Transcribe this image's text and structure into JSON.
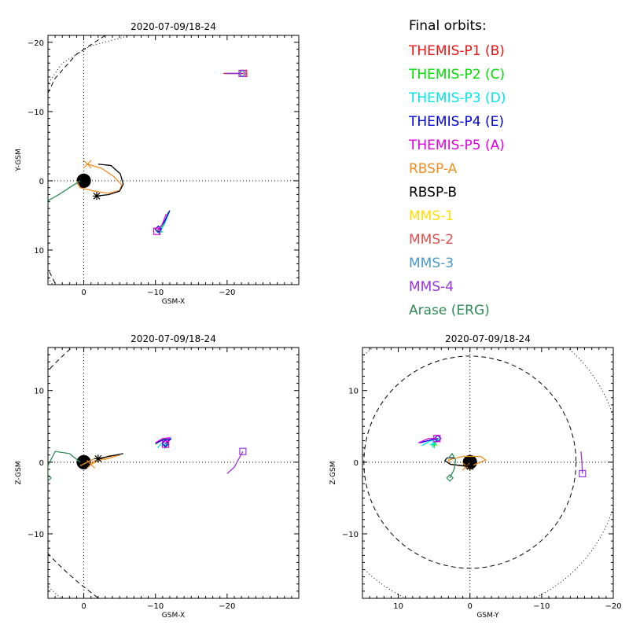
{
  "chart_data": [
    {
      "type": "scatter",
      "title": "2020-07-09/18-24",
      "xlabel": "GSM-X",
      "ylabel": "Y-GSM",
      "xlim": [
        5,
        -30
      ],
      "ylim": [
        15,
        -21
      ],
      "xticks": [
        0,
        -10,
        -20
      ],
      "yticks": [
        -20,
        -10,
        0,
        10
      ],
      "yticklabels": [
        "−20",
        "−10",
        "0",
        "10"
      ],
      "xticklabels": [
        "0",
        "−10",
        "−20"
      ],
      "earth": {
        "x": 0,
        "y": 0,
        "r": 1
      },
      "magnetopause": [
        [
          -3,
          -21
        ],
        [
          1,
          -18.3
        ],
        [
          4,
          -14.8
        ],
        [
          6,
          -10.6
        ],
        [
          7,
          -6
        ],
        [
          7.5,
          0
        ],
        [
          7,
          6
        ],
        [
          6,
          10.6
        ],
        [
          4,
          14.8
        ],
        [
          2.5,
          16.5
        ]
      ],
      "bow_shock": [
        [
          -6.5,
          -21
        ],
        [
          -1,
          -19.5
        ],
        [
          3,
          -17
        ],
        [
          5,
          -14
        ],
        [
          7,
          -8
        ],
        [
          7.5,
          0
        ],
        [
          7,
          8
        ],
        [
          5,
          14
        ],
        [
          3,
          17
        ],
        [
          0.5,
          18.5
        ]
      ],
      "orbits": [
        {
          "name": "THEMIS-P1 (B)",
          "color": "#ee1111",
          "points": [
            [
              -19.5,
              -15.5
            ],
            [
              -22.3,
              -15.5
            ]
          ],
          "marker": "square"
        },
        {
          "name": "THEMIS-P2 (C)",
          "color": "#00dd00",
          "points": [
            [
              -11.8,
              4.5
            ],
            [
              -11.2,
              6.2
            ],
            [
              -10.5,
              7.3
            ]
          ],
          "marker": "cross"
        },
        {
          "name": "THEMIS-P3 (D)",
          "color": "#00e5ee",
          "points": [
            [
              -12,
              4.3
            ],
            [
              -11.3,
              6.2
            ],
            [
              -10.6,
              7.4
            ]
          ],
          "marker": "cross"
        },
        {
          "name": "THEMIS-P4 (E)",
          "color": "#0000dd",
          "points": [
            [
              -12,
              4.3
            ],
            [
              -11.2,
              6
            ],
            [
              -10.4,
              7
            ]
          ],
          "marker": "diamond"
        },
        {
          "name": "THEMIS-P5 (A)",
          "color": "#e000e0",
          "points": [
            [
              -11.5,
              4.8
            ],
            [
              -10.9,
              6.4
            ],
            [
              -10.2,
              7.3
            ]
          ],
          "marker": "square"
        },
        {
          "name": "RBSP-A",
          "color": "#f08c20",
          "points": [
            [
              -0.5,
              -2.4
            ],
            [
              -2.5,
              -1.8
            ],
            [
              -4.2,
              -0.6
            ],
            [
              -5.3,
              0.6
            ],
            [
              -5,
              1.4
            ],
            [
              -3.5,
              1.8
            ],
            [
              -1.5,
              1.5
            ],
            [
              0.5,
              1
            ],
            [
              1,
              0
            ]
          ],
          "marker": "x",
          "marker_point": [
            -0.5,
            -2.4
          ]
        },
        {
          "name": "RBSP-B",
          "color": "#000000",
          "points": [
            [
              -2,
              -2.4
            ],
            [
              -3.8,
              -2.2
            ],
            [
              -5.1,
              -1
            ],
            [
              -5.5,
              0.5
            ],
            [
              -5,
              1.5
            ],
            [
              -3.5,
              2
            ],
            [
              -1.8,
              2.2
            ]
          ],
          "marker": "asterisk"
        },
        {
          "name": "MMS-1",
          "color": "#ffdd00",
          "points": [
            [
              -19.8,
              -15.5
            ],
            [
              -22.1,
              -15.5
            ]
          ],
          "marker": "diamond"
        },
        {
          "name": "MMS-2",
          "color": "#e05050",
          "points": [
            [
              -19.8,
              -15.5
            ],
            [
              -22.1,
              -15.5
            ]
          ],
          "marker": "diamond"
        },
        {
          "name": "MMS-3",
          "color": "#4a98c8",
          "points": [
            [
              -19.8,
              -15.5
            ],
            [
              -22.1,
              -15.5
            ]
          ],
          "marker": "diamond"
        },
        {
          "name": "MMS-4",
          "color": "#9933dd",
          "points": [
            [
              -19.8,
              -15.5
            ],
            [
              -22.1,
              -15.5
            ]
          ],
          "marker": "square"
        },
        {
          "name": "Arase (ERG)",
          "color": "#2e8b57",
          "points": [
            [
              0.5,
              0
            ],
            [
              2,
              1
            ],
            [
              3.5,
              2
            ],
            [
              4.5,
              2.6
            ],
            [
              5.3,
              3
            ]
          ],
          "marker": "diamond"
        }
      ]
    },
    {
      "type": "scatter",
      "title": "2020-07-09/18-24",
      "xlabel": "GSM-X",
      "ylabel": "Z-GSM",
      "xlim": [
        5,
        -30
      ],
      "ylim": [
        -19,
        16
      ],
      "xticks": [
        0,
        -10,
        -20
      ],
      "yticks": [
        -10,
        0,
        10
      ],
      "yticklabels": [
        "−10",
        "0",
        "10"
      ],
      "xticklabels": [
        "0",
        "−10",
        "−20"
      ],
      "earth": {
        "x": 0,
        "y": 0,
        "r": 1
      },
      "orbits": [
        {
          "name": "THEMIS-P2 (C)",
          "color": "#00dd00",
          "points": [
            [
              -10,
              2.5
            ],
            [
              -11,
              3.2
            ],
            [
              -12,
              3.3
            ],
            [
              -11.5,
              2.4
            ]
          ],
          "marker": "cross"
        },
        {
          "name": "THEMIS-P3 (D)",
          "color": "#00e5ee",
          "points": [
            [
              -10.3,
              2
            ],
            [
              -11.2,
              3
            ],
            [
              -12.2,
              3.4
            ],
            [
              -11.3,
              2.3
            ]
          ],
          "marker": "cross"
        },
        {
          "name": "THEMIS-P4 (E)",
          "color": "#0000dd",
          "points": [
            [
              -10,
              2.6
            ],
            [
              -11,
              3.1
            ],
            [
              -12.1,
              3.2
            ],
            [
              -11.4,
              2.6
            ]
          ],
          "marker": "diamond"
        },
        {
          "name": "THEMIS-P5 (A)",
          "color": "#e000e0",
          "points": [
            [
              -10,
              2.7
            ],
            [
              -11,
              3.3
            ],
            [
              -12,
              3.4
            ],
            [
              -11.4,
              2.5
            ]
          ],
          "marker": "square"
        },
        {
          "name": "RBSP-A",
          "color": "#f08c20",
          "points": [
            [
              0.5,
              -0.5
            ],
            [
              -1.5,
              0.5
            ],
            [
              -3,
              0.4
            ],
            [
              -5,
              1
            ],
            [
              -3.5,
              0.9
            ],
            [
              -1,
              -0.3
            ]
          ],
          "marker": "x"
        },
        {
          "name": "RBSP-B",
          "color": "#000000",
          "points": [
            [
              -2,
              0.5
            ],
            [
              -3.5,
              0.8
            ],
            [
              -5.5,
              1.2
            ],
            [
              -4,
              0.9
            ],
            [
              -2,
              0.5
            ]
          ],
          "marker": "asterisk"
        },
        {
          "name": "MMS-4",
          "color": "#9933dd",
          "points": [
            [
              -20,
              -1.6
            ],
            [
              -21,
              -0.7
            ],
            [
              -22.2,
              1.5
            ]
          ],
          "marker": "square"
        },
        {
          "name": "Arase (ERG)",
          "color": "#2e8b57",
          "points": [
            [
              0.5,
              0
            ],
            [
              2,
              1.2
            ],
            [
              4,
              1.5
            ],
            [
              5,
              -0.5
            ],
            [
              5,
              -2.2
            ]
          ],
          "marker": "diamond"
        }
      ]
    },
    {
      "type": "scatter",
      "title": "2020-07-09/18-24",
      "xlabel": "GSM-Y",
      "ylabel": "Z-GSM",
      "xlim": [
        15,
        -20
      ],
      "ylim": [
        -19,
        16
      ],
      "xticks": [
        10,
        0,
        -10,
        -20
      ],
      "xticklabels": [
        "10",
        "0",
        "−10",
        "−20"
      ],
      "yticks": [
        -10,
        0,
        10
      ],
      "yticklabels": [
        "−10",
        "0",
        "10"
      ],
      "earth": {
        "x": 0,
        "y": 0,
        "r": 1
      },
      "orbits": [
        {
          "name": "THEMIS-P2 (C)",
          "color": "#00dd00",
          "points": [
            [
              6.5,
              2.4
            ],
            [
              5.5,
              3
            ],
            [
              4.4,
              3.3
            ],
            [
              5,
              2.4
            ]
          ],
          "marker": "cross"
        },
        {
          "name": "THEMIS-P3 (D)",
          "color": "#00e5ee",
          "points": [
            [
              6.7,
              2.3
            ],
            [
              5.5,
              3
            ],
            [
              4.4,
              3.3
            ],
            [
              5.2,
              2.5
            ]
          ],
          "marker": "cross"
        },
        {
          "name": "THEMIS-P4 (E)",
          "color": "#0000dd",
          "points": [
            [
              7,
              2.7
            ],
            [
              5.5,
              3.1
            ],
            [
              4.5,
              3.3
            ]
          ],
          "marker": "diamond"
        },
        {
          "name": "THEMIS-P5 (A)",
          "color": "#e000e0",
          "points": [
            [
              7.2,
              2.7
            ],
            [
              5.8,
              3.3
            ],
            [
              4.6,
              3.3
            ]
          ],
          "marker": "square"
        },
        {
          "name": "RBSP-A",
          "color": "#f08c20",
          "points": [
            [
              -0.5,
              -0.4
            ],
            [
              -2.2,
              0.3
            ],
            [
              -1.5,
              0.8
            ],
            [
              1,
              0.8
            ],
            [
              3,
              0.3
            ],
            [
              2.8,
              -0.3
            ],
            [
              0.5,
              -0.6
            ]
          ],
          "marker": "x"
        },
        {
          "name": "RBSP-B",
          "color": "#000000",
          "points": [
            [
              2.2,
              0.6
            ],
            [
              3.2,
              0.6
            ],
            [
              3.5,
              0.2
            ],
            [
              2.7,
              -0.3
            ],
            [
              0,
              -0.6
            ]
          ],
          "marker": "asterisk"
        },
        {
          "name": "MMS-4",
          "color": "#9933dd",
          "points": [
            [
              -15.5,
              1.5
            ],
            [
              -15.6,
              0.3
            ],
            [
              -15.7,
              -1.6
            ]
          ],
          "marker": "square"
        },
        {
          "name": "Arase (ERG)",
          "color": "#2e8b57",
          "points": [
            [
              3,
              0.5
            ],
            [
              2.5,
              1.2
            ],
            [
              2,
              0.3
            ],
            [
              2.2,
              -1
            ],
            [
              2.8,
              -2.2
            ]
          ],
          "marker": "diamond"
        }
      ]
    }
  ],
  "legend": {
    "heading": "Final orbits:",
    "entries": [
      {
        "label": "THEMIS-P1 (B)",
        "color": "#ee1111"
      },
      {
        "label": "THEMIS-P2 (C)",
        "color": "#00dd00"
      },
      {
        "label": "THEMIS-P3 (D)",
        "color": "#00e5ee"
      },
      {
        "label": "THEMIS-P4 (E)",
        "color": "#0000dd"
      },
      {
        "label": "THEMIS-P5 (A)",
        "color": "#e000e0"
      },
      {
        "label": "RBSP-A",
        "color": "#f08c20"
      },
      {
        "label": "RBSP-B",
        "color": "#000000"
      },
      {
        "label": "MMS-1",
        "color": "#ffdd00"
      },
      {
        "label": "MMS-2",
        "color": "#e05050"
      },
      {
        "label": "MMS-3",
        "color": "#4a98c8"
      },
      {
        "label": "MMS-4",
        "color": "#9933dd"
      },
      {
        "label": "Arase (ERG)",
        "color": "#2e8b57"
      }
    ]
  }
}
